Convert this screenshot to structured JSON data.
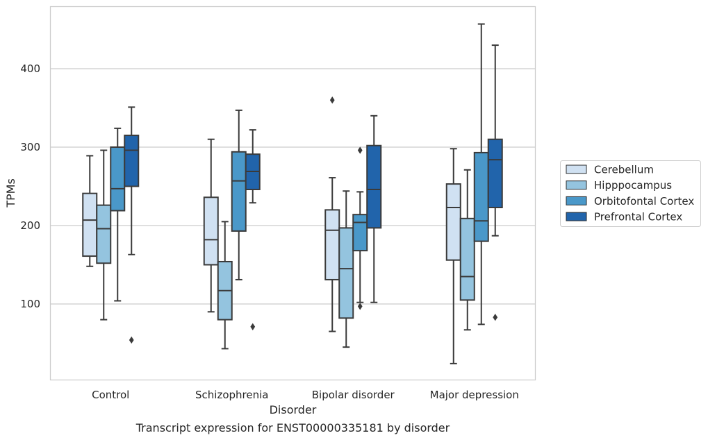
{
  "chart_data": {
    "type": "boxplot",
    "title": "",
    "caption": "Transcript expression for ENST00000335181 by disorder",
    "xlabel": "Disorder",
    "ylabel": "TPMs",
    "ylim": [
      3,
      480
    ],
    "yticks": [
      100,
      200,
      300,
      400
    ],
    "grid": "horizontal",
    "legend_position": "right",
    "categories": [
      "Control",
      "Schizophrenia",
      "Bipolar disorder",
      "Major depression"
    ],
    "series": [
      {
        "name": "Cerebellum",
        "color": "#d0e1f2",
        "boxes": [
          {
            "min": 148,
            "q1": 161,
            "median": 207,
            "q3": 241,
            "max": 289,
            "outliers": []
          },
          {
            "min": 90,
            "q1": 150,
            "median": 182,
            "q3": 236,
            "max": 310,
            "outliers": []
          },
          {
            "min": 65,
            "q1": 131,
            "median": 194,
            "q3": 220,
            "max": 261,
            "outliers": [
              360
            ]
          },
          {
            "min": 24,
            "q1": 156,
            "median": 223,
            "q3": 253,
            "max": 298,
            "outliers": []
          }
        ]
      },
      {
        "name": "Hipppocampus",
        "color": "#94c4df",
        "boxes": [
          {
            "min": 80,
            "q1": 152,
            "median": 196,
            "q3": 226,
            "max": 296,
            "outliers": []
          },
          {
            "min": 43,
            "q1": 80,
            "median": 117,
            "q3": 154,
            "max": 205,
            "outliers": []
          },
          {
            "min": 45,
            "q1": 82,
            "median": 145,
            "q3": 197,
            "max": 244,
            "outliers": []
          },
          {
            "min": 67,
            "q1": 105,
            "median": 135,
            "q3": 209,
            "max": 271,
            "outliers": []
          }
        ]
      },
      {
        "name": "Orbitofontal Cortex",
        "color": "#4a98c9",
        "boxes": [
          {
            "min": 104,
            "q1": 219,
            "median": 247,
            "q3": 300,
            "max": 324,
            "outliers": []
          },
          {
            "min": 131,
            "q1": 193,
            "median": 257,
            "q3": 294,
            "max": 347,
            "outliers": []
          },
          {
            "min": 102,
            "q1": 168,
            "median": 204,
            "q3": 214,
            "max": 243,
            "outliers": [
              296,
              97
            ]
          },
          {
            "min": 74,
            "q1": 180,
            "median": 206,
            "q3": 293,
            "max": 457,
            "outliers": []
          }
        ]
      },
      {
        "name": "Prefrontal Cortex",
        "color": "#2164ab",
        "boxes": [
          {
            "min": 163,
            "q1": 250,
            "median": 296,
            "q3": 315,
            "max": 351,
            "outliers": [
              54
            ]
          },
          {
            "min": 229,
            "q1": 246,
            "median": 269,
            "q3": 291,
            "max": 322,
            "outliers": [
              71
            ]
          },
          {
            "min": 102,
            "q1": 197,
            "median": 246,
            "q3": 302,
            "max": 340,
            "outliers": []
          },
          {
            "min": 187,
            "q1": 223,
            "median": 284,
            "q3": 310,
            "max": 430,
            "outliers": [
              83
            ]
          }
        ]
      }
    ]
  }
}
